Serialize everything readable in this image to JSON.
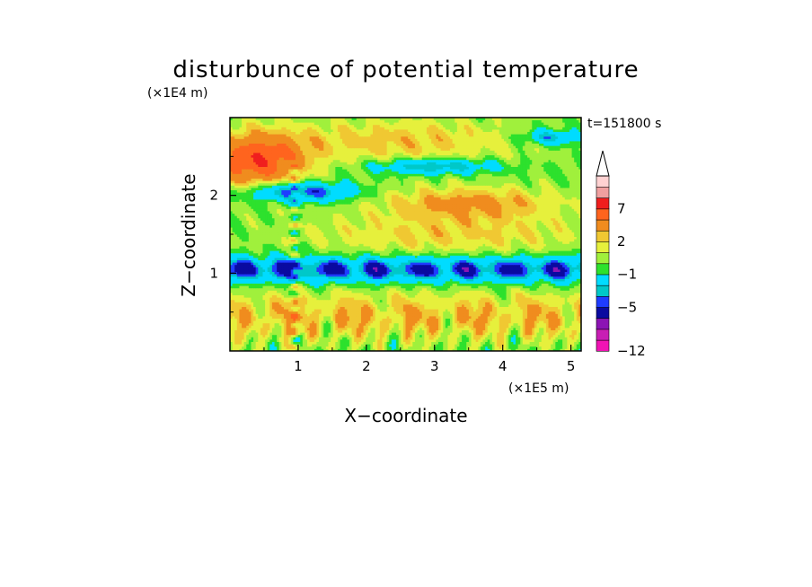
{
  "chart_data": {
    "type": "heatmap",
    "title": "disturbunce of potential temperature",
    "xlabel": "X−coordinate",
    "ylabel": "Z−coordinate",
    "x_unit": "(×1E5 m)",
    "y_unit": "(×1E4 m)",
    "time_label": "t=151800 s",
    "xlim": [
      0,
      5.15
    ],
    "ylim": [
      0,
      3.0
    ],
    "x_ticks": [
      1,
      2,
      3,
      4,
      5
    ],
    "y_ticks": [
      1,
      2
    ],
    "colorbar": {
      "levels": [
        -12,
        -11,
        -9,
        -7,
        -5,
        -4,
        -3,
        -1,
        0,
        1,
        2,
        3,
        5,
        7,
        9,
        10
      ],
      "colors": [
        "#f013b4",
        "#c81eb4",
        "#8c14b4",
        "#0a0aa0",
        "#1e3cff",
        "#00c8c8",
        "#00dcff",
        "#2de12d",
        "#a0f03c",
        "#e6f03c",
        "#f0c832",
        "#f08c1e",
        "#ff641e",
        "#f01e1e",
        "#f0a0a0",
        "#ffd2d2"
      ],
      "tick_labels": [
        "−12",
        "−5",
        "−1",
        "2",
        "7"
      ],
      "extend": "max"
    },
    "field_features": [
      {
        "kind": "negative_band",
        "z_center": 1.05,
        "x_range": [
          0,
          5.15
        ],
        "value": -5
      },
      {
        "kind": "negative_band",
        "z_center": 2.05,
        "x_range": [
          0.3,
          1.9
        ],
        "value": -5
      },
      {
        "kind": "negative_band",
        "z_center": 2.4,
        "x_range": [
          2.2,
          3.7
        ],
        "value": -5
      },
      {
        "kind": "positive_band",
        "z_center": 1.9,
        "x_range": [
          1.9,
          5.0
        ],
        "value": 3
      },
      {
        "kind": "positive_band",
        "z_center": 2.45,
        "x_range": [
          0,
          1.1
        ],
        "value": 7
      },
      {
        "kind": "positive_band",
        "z_center": 0.45,
        "x_range": [
          0,
          5.15
        ],
        "value": 3
      },
      {
        "kind": "wave_column",
        "x_center": 0.95,
        "z_range": [
          0.2,
          2.3
        ]
      }
    ]
  }
}
